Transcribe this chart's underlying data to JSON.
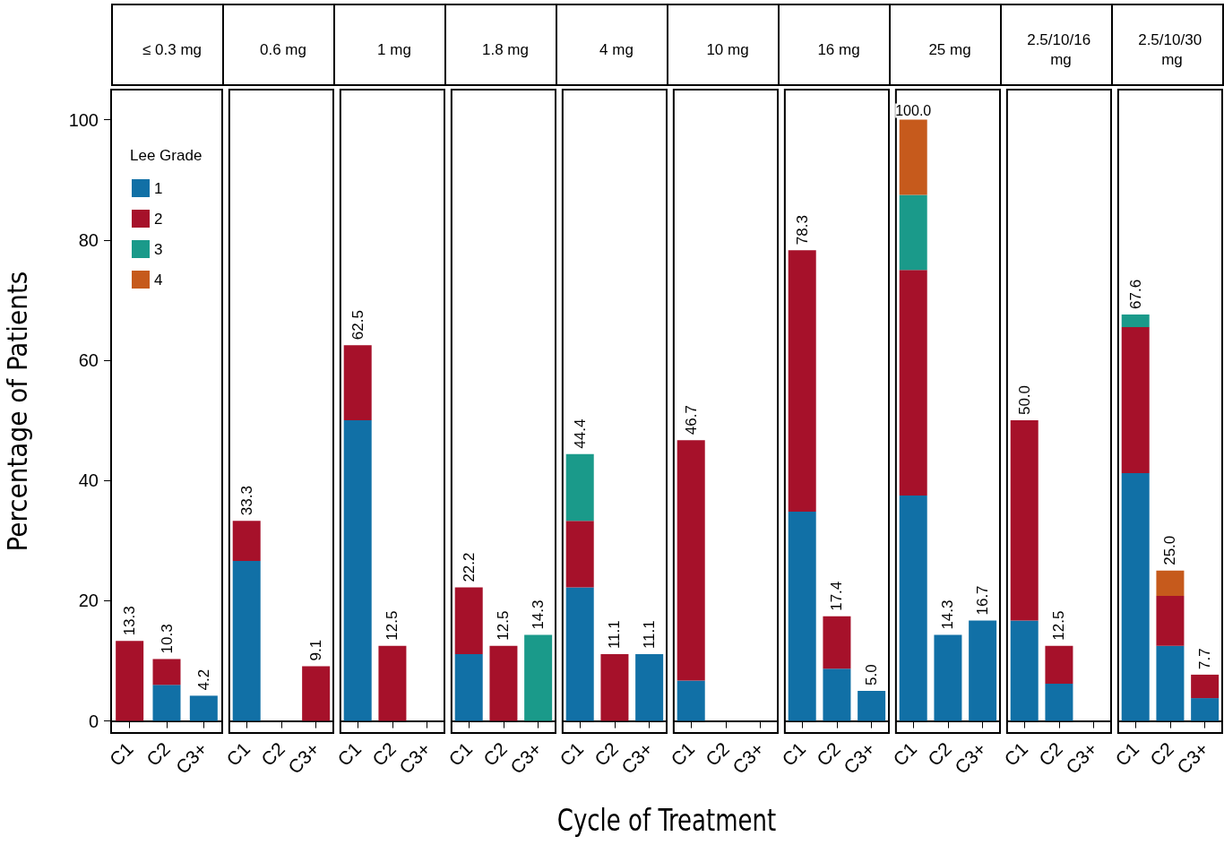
{
  "chart_data": [
    {
      "type": "bar",
      "stacked": true,
      "title": "≤ 0.3 mg",
      "ylabel": "Percentage of Patients",
      "legend_title": "Lee Grade",
      "legend": "top left",
      "categories": [
        "C1",
        "C2",
        "C3+"
      ],
      "ylim": [
        -2,
        105
      ],
      "yticks": [
        0,
        20,
        40,
        60,
        80,
        100
      ],
      "totals": [
        "13.3",
        "10.3",
        "4.2"
      ],
      "series": [
        {
          "name": "1",
          "color": "#1170a6",
          "values": [
            null,
            6.0,
            4.2
          ]
        },
        {
          "name": "2",
          "color": "#a6112a",
          "values": [
            13.3,
            4.3,
            null
          ]
        },
        {
          "name": "3",
          "color": "#1a9a8a",
          "values": [
            null,
            null,
            null
          ]
        },
        {
          "name": "4",
          "color": "#c65a1c",
          "values": [
            null,
            null,
            null
          ]
        }
      ]
    },
    {
      "type": "bar",
      "stacked": true,
      "title": "0.6 mg",
      "categories": [
        "C1",
        "C2",
        "C3+"
      ],
      "ylim": [
        -2,
        105
      ],
      "yticks": [
        0,
        20,
        40,
        60,
        80,
        100
      ],
      "tick_labels": "x",
      "totals": [
        "33.3",
        null,
        "9.1"
      ],
      "series": [
        {
          "color": "#1170a6",
          "values": [
            26.6,
            null,
            null
          ]
        },
        {
          "color": "#a6112a",
          "values": [
            6.7,
            null,
            9.1
          ]
        }
      ]
    },
    {
      "type": "bar",
      "stacked": true,
      "title": "1 mg",
      "categories": [
        "C1",
        "C2",
        "C3+"
      ],
      "ylim": [
        -2,
        105
      ],
      "yticks": [
        0,
        20,
        40,
        60,
        80,
        100
      ],
      "tick_labels": "x",
      "totals": [
        "62.5",
        "12.5",
        null
      ],
      "series": [
        {
          "color": "#1170a6",
          "values": [
            50.0,
            null,
            null
          ]
        },
        {
          "color": "#a6112a",
          "values": [
            12.5,
            12.5,
            null
          ]
        }
      ]
    },
    {
      "type": "bar",
      "stacked": true,
      "title": "1.8 mg",
      "categories": [
        "C1",
        "C2",
        "C3+"
      ],
      "ylim": [
        -2,
        105
      ],
      "yticks": [
        0,
        20,
        40,
        60,
        80,
        100
      ],
      "tick_labels": "x",
      "totals": [
        "22.2",
        "12.5",
        "14.3"
      ],
      "series": [
        {
          "color": "#1170a6",
          "values": [
            11.1,
            null,
            null
          ]
        },
        {
          "color": "#a6112a",
          "values": [
            11.1,
            12.5,
            null
          ]
        },
        {
          "color": "#1a9a8a",
          "values": [
            null,
            null,
            14.3
          ]
        }
      ]
    },
    {
      "type": "bar",
      "stacked": true,
      "title": "4 mg",
      "xlabel": "Cycle of Treatment",
      "categories": [
        "C1",
        "C2",
        "C3+"
      ],
      "ylim": [
        -2,
        105
      ],
      "yticks": [
        0,
        20,
        40,
        60,
        80,
        100
      ],
      "tick_labels": "x",
      "totals": [
        "44.4",
        "11.1",
        "11.1"
      ],
      "series": [
        {
          "color": "#1170a6",
          "values": [
            22.2,
            null,
            11.1
          ]
        },
        {
          "color": "#a6112a",
          "values": [
            11.1,
            11.1,
            null
          ]
        },
        {
          "color": "#1a9a8a",
          "values": [
            11.1,
            null,
            null
          ]
        }
      ]
    },
    {
      "type": "bar",
      "stacked": true,
      "title": "10 mg",
      "categories": [
        "C1",
        "C2",
        "C3+"
      ],
      "ylim": [
        -2,
        105
      ],
      "yticks": [
        0,
        20,
        40,
        60,
        80,
        100
      ],
      "tick_labels": "x",
      "totals": [
        "46.7",
        null,
        null
      ],
      "series": [
        {
          "color": "#1170a6",
          "values": [
            6.7,
            null,
            null
          ]
        },
        {
          "color": "#a6112a",
          "values": [
            40.0,
            null,
            null
          ]
        }
      ]
    },
    {
      "type": "bar",
      "stacked": true,
      "title": "16 mg",
      "categories": [
        "C1",
        "C2",
        "C3+"
      ],
      "ylim": [
        -2,
        105
      ],
      "yticks": [
        0,
        20,
        40,
        60,
        80,
        100
      ],
      "tick_labels": "x",
      "totals": [
        "78.3",
        "17.4",
        "5.0"
      ],
      "series": [
        {
          "color": "#1170a6",
          "values": [
            34.8,
            8.7,
            5.0
          ]
        },
        {
          "color": "#a6112a",
          "values": [
            43.5,
            8.7,
            null
          ]
        }
      ]
    },
    {
      "type": "bar",
      "stacked": true,
      "title": "25 mg",
      "categories": [
        "C1",
        "C2",
        "C3+"
      ],
      "ylim": [
        -2,
        105
      ],
      "yticks": [
        0,
        20,
        40,
        60,
        80,
        100
      ],
      "tick_labels": "x",
      "totals": [
        "100.0",
        "14.3",
        "16.7"
      ],
      "series": [
        {
          "color": "#1170a6",
          "values": [
            37.5,
            14.3,
            16.7
          ]
        },
        {
          "color": "#a6112a",
          "values": [
            37.5,
            null,
            null
          ]
        },
        {
          "color": "#1a9a8a",
          "values": [
            12.5,
            null,
            null
          ]
        },
        {
          "color": "#c65a1c",
          "values": [
            12.5,
            null,
            null
          ]
        }
      ]
    },
    {
      "type": "bar",
      "stacked": true,
      "title": "2.5/10/16 mg",
      "categories": [
        "C1",
        "C2",
        "C3+"
      ],
      "ylim": [
        -2,
        105
      ],
      "yticks": [
        0,
        20,
        40,
        60,
        80,
        100
      ],
      "tick_labels": "x",
      "totals": [
        "50.0",
        "12.5",
        null
      ],
      "series": [
        {
          "color": "#1170a6",
          "values": [
            16.7,
            6.2,
            null
          ]
        },
        {
          "color": "#a6112a",
          "values": [
            33.3,
            6.3,
            null
          ]
        }
      ]
    },
    {
      "type": "bar",
      "stacked": true,
      "title": "2.5/10/30 mg",
      "categories": [
        "C1",
        "C2",
        "C3+"
      ],
      "ylim": [
        -2,
        105
      ],
      "yticks": [
        0,
        20,
        40,
        60,
        80,
        100
      ],
      "tick_labels": "x",
      "totals": [
        "67.6",
        "25.0",
        "7.7"
      ],
      "series": [
        {
          "color": "#1170a6",
          "values": [
            41.2,
            12.5,
            3.8
          ]
        },
        {
          "color": "#a6112a",
          "values": [
            24.3,
            8.3,
            3.9
          ]
        },
        {
          "color": "#1a9a8a",
          "values": [
            2.1,
            null,
            null
          ]
        },
        {
          "color": "#c65a1c",
          "values": [
            null,
            4.2,
            null
          ]
        }
      ]
    }
  ]
}
